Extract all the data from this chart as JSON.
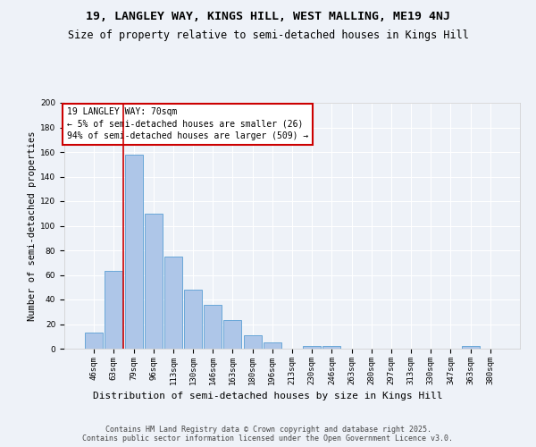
{
  "title1": "19, LANGLEY WAY, KINGS HILL, WEST MALLING, ME19 4NJ",
  "title2": "Size of property relative to semi-detached houses in Kings Hill",
  "xlabel": "Distribution of semi-detached houses by size in Kings Hill",
  "ylabel": "Number of semi-detached properties",
  "categories": [
    "46sqm",
    "63sqm",
    "79sqm",
    "96sqm",
    "113sqm",
    "130sqm",
    "146sqm",
    "163sqm",
    "180sqm",
    "196sqm",
    "213sqm",
    "230sqm",
    "246sqm",
    "263sqm",
    "280sqm",
    "297sqm",
    "313sqm",
    "330sqm",
    "347sqm",
    "363sqm",
    "380sqm"
  ],
  "values": [
    13,
    63,
    158,
    110,
    75,
    48,
    36,
    23,
    11,
    5,
    0,
    2,
    2,
    0,
    0,
    0,
    0,
    0,
    0,
    2,
    0
  ],
  "bar_color": "#aec6e8",
  "bar_edge_color": "#5a9fd4",
  "annotation_title": "19 LANGLEY WAY: 70sqm",
  "annotation_line1": "← 5% of semi-detached houses are smaller (26)",
  "annotation_line2": "94% of semi-detached houses are larger (509) →",
  "annotation_box_color": "#ffffff",
  "annotation_box_edge": "#cc0000",
  "vline_color": "#cc0000",
  "vline_x": 1.5,
  "ylim": [
    0,
    200
  ],
  "yticks": [
    0,
    20,
    40,
    60,
    80,
    100,
    120,
    140,
    160,
    180,
    200
  ],
  "background_color": "#eef2f8",
  "grid_color": "#ffffff",
  "footer": "Contains HM Land Registry data © Crown copyright and database right 2025.\nContains public sector information licensed under the Open Government Licence v3.0.",
  "title1_fontsize": 9.5,
  "title2_fontsize": 8.5,
  "xlabel_fontsize": 8,
  "ylabel_fontsize": 7.5,
  "tick_fontsize": 6.5,
  "ann_fontsize": 7,
  "footer_fontsize": 6
}
